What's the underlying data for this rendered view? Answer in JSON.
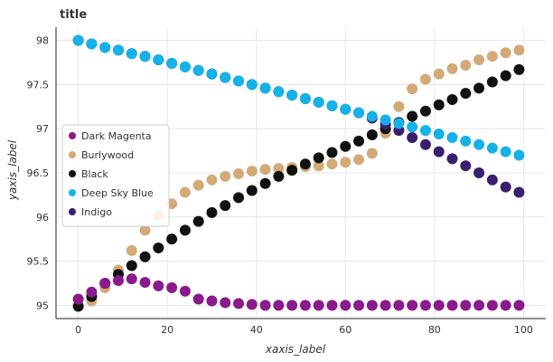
{
  "chart_data": {
    "type": "scatter",
    "title": "title",
    "xlabel": "xaxis_label",
    "ylabel": "yaxis_label",
    "xlim": [
      -5,
      105
    ],
    "ylim": [
      94.85,
      98.15
    ],
    "xticks": [
      0,
      20,
      40,
      60,
      80,
      100
    ],
    "yticks": [
      95,
      95.5,
      96,
      96.5,
      97,
      97.5,
      98
    ],
    "grid": true,
    "legend_position": "left",
    "x": [
      0,
      3,
      6,
      9,
      12,
      15,
      18,
      21,
      24,
      27,
      30,
      33,
      36,
      39,
      42,
      45,
      48,
      51,
      54,
      57,
      60,
      63,
      66,
      69,
      72,
      75,
      78,
      81,
      84,
      87,
      90,
      93,
      96,
      99
    ],
    "series": [
      {
        "name": "Dark Magenta",
        "color": "#8B1A8B",
        "values": [
          95.07,
          95.15,
          95.25,
          95.28,
          95.3,
          95.26,
          95.22,
          95.2,
          95.16,
          95.07,
          95.05,
          95.03,
          95.02,
          95.01,
          95.0,
          95.0,
          95.0,
          95.0,
          95.0,
          95.0,
          95.0,
          95.0,
          95.0,
          95.0,
          95.0,
          95.0,
          95.0,
          95.0,
          95.0,
          95.0,
          95.0,
          95.0,
          95.0,
          95.0
        ]
      },
      {
        "name": "Burlywood",
        "color": "#D2AA78",
        "values": [
          94.99,
          95.05,
          95.2,
          95.4,
          95.62,
          95.85,
          96.02,
          96.15,
          96.28,
          96.36,
          96.42,
          96.46,
          96.49,
          96.52,
          96.54,
          96.55,
          96.56,
          96.57,
          96.58,
          96.6,
          96.62,
          96.65,
          96.72,
          96.95,
          97.25,
          97.45,
          97.56,
          97.62,
          97.68,
          97.72,
          97.78,
          97.82,
          97.86,
          97.89
        ]
      },
      {
        "name": "Black",
        "color": "#111111",
        "values": [
          94.99,
          95.1,
          95.25,
          95.35,
          95.45,
          95.55,
          95.65,
          95.75,
          95.85,
          95.95,
          96.05,
          96.13,
          96.22,
          96.3,
          96.38,
          96.46,
          96.53,
          96.6,
          96.67,
          96.73,
          96.8,
          96.86,
          96.93,
          97.0,
          97.07,
          97.14,
          97.2,
          97.27,
          97.33,
          97.4,
          97.46,
          97.53,
          97.6,
          97.67
        ]
      },
      {
        "name": "Deep Sky Blue",
        "color": "#15B2E8",
        "values": [
          98.0,
          97.96,
          97.92,
          97.89,
          97.85,
          97.82,
          97.78,
          97.74,
          97.7,
          97.66,
          97.62,
          97.58,
          97.54,
          97.5,
          97.46,
          97.42,
          97.38,
          97.34,
          97.3,
          97.26,
          97.22,
          97.18,
          97.14,
          97.1,
          97.06,
          97.02,
          96.98,
          96.94,
          96.9,
          96.86,
          96.82,
          96.78,
          96.74,
          96.7
        ]
      },
      {
        "name": "Indigo",
        "color": "#3A1F6E",
        "values": [
          98.0,
          97.96,
          97.92,
          97.89,
          97.85,
          97.82,
          97.78,
          97.74,
          97.7,
          97.66,
          97.62,
          97.58,
          97.54,
          97.5,
          97.46,
          97.42,
          97.38,
          97.34,
          97.3,
          97.26,
          97.22,
          97.18,
          97.12,
          97.05,
          96.98,
          96.9,
          96.82,
          96.74,
          96.66,
          96.58,
          96.5,
          96.42,
          96.34,
          96.28
        ]
      }
    ]
  }
}
